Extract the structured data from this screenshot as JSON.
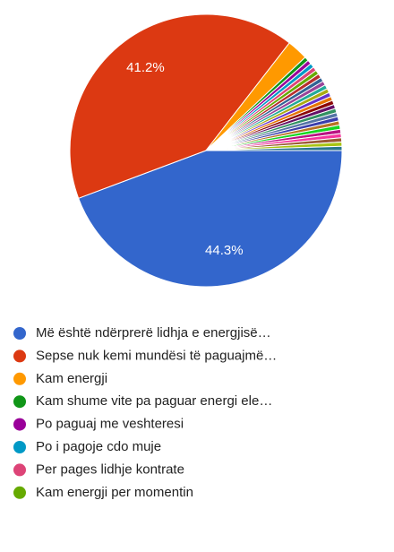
{
  "chart_data": {
    "type": "pie",
    "categories": [
      "Më është ndërprerë lidhja e energjisë…",
      "Sepse nuk kemi mundësi të paguajmë…",
      "Kam energji",
      "Kam shume vite pa paguar energi ele…",
      "Po paguaj me veshteresi",
      "Po i pagoje cdo muje",
      "Per pages lidhje kontrate",
      "Kam energji per momentin",
      null,
      null,
      null,
      null,
      null,
      null,
      null,
      null,
      null,
      null,
      null,
      null,
      null,
      null,
      null,
      null,
      null,
      null,
      null
    ],
    "values": [
      44.3,
      41.2,
      2.5,
      0.5,
      0.5,
      0.5,
      0.5,
      0.5,
      0.5,
      0.5,
      0.5,
      0.5,
      0.5,
      0.5,
      0.5,
      0.5,
      0.5,
      0.5,
      0.5,
      0.5,
      0.5,
      0.5,
      0.5,
      0.5,
      0.5,
      0.5,
      0.5
    ],
    "value_labels": [
      "44.3%",
      "41.2%",
      null,
      null,
      null,
      null,
      null,
      null,
      null,
      null,
      null,
      null,
      null,
      null,
      null,
      null,
      null,
      null,
      null,
      null,
      null,
      null,
      null,
      null,
      null,
      null,
      null
    ],
    "colors": [
      "#3366cc",
      "#dc3912",
      "#ff9900",
      "#109618",
      "#990099",
      "#0099c6",
      "#dd4477",
      "#66aa00",
      "#b82e2e",
      "#316395",
      "#994499",
      "#22aa99",
      "#aaaa11",
      "#6633cc",
      "#e67300",
      "#8b0707",
      "#651067",
      "#329262",
      "#5574a6",
      "#3b3eac",
      "#b77322",
      "#16d620",
      "#b91383",
      "#f4359e",
      "#9c5935",
      "#a9c413",
      "#2a778d"
    ]
  }
}
